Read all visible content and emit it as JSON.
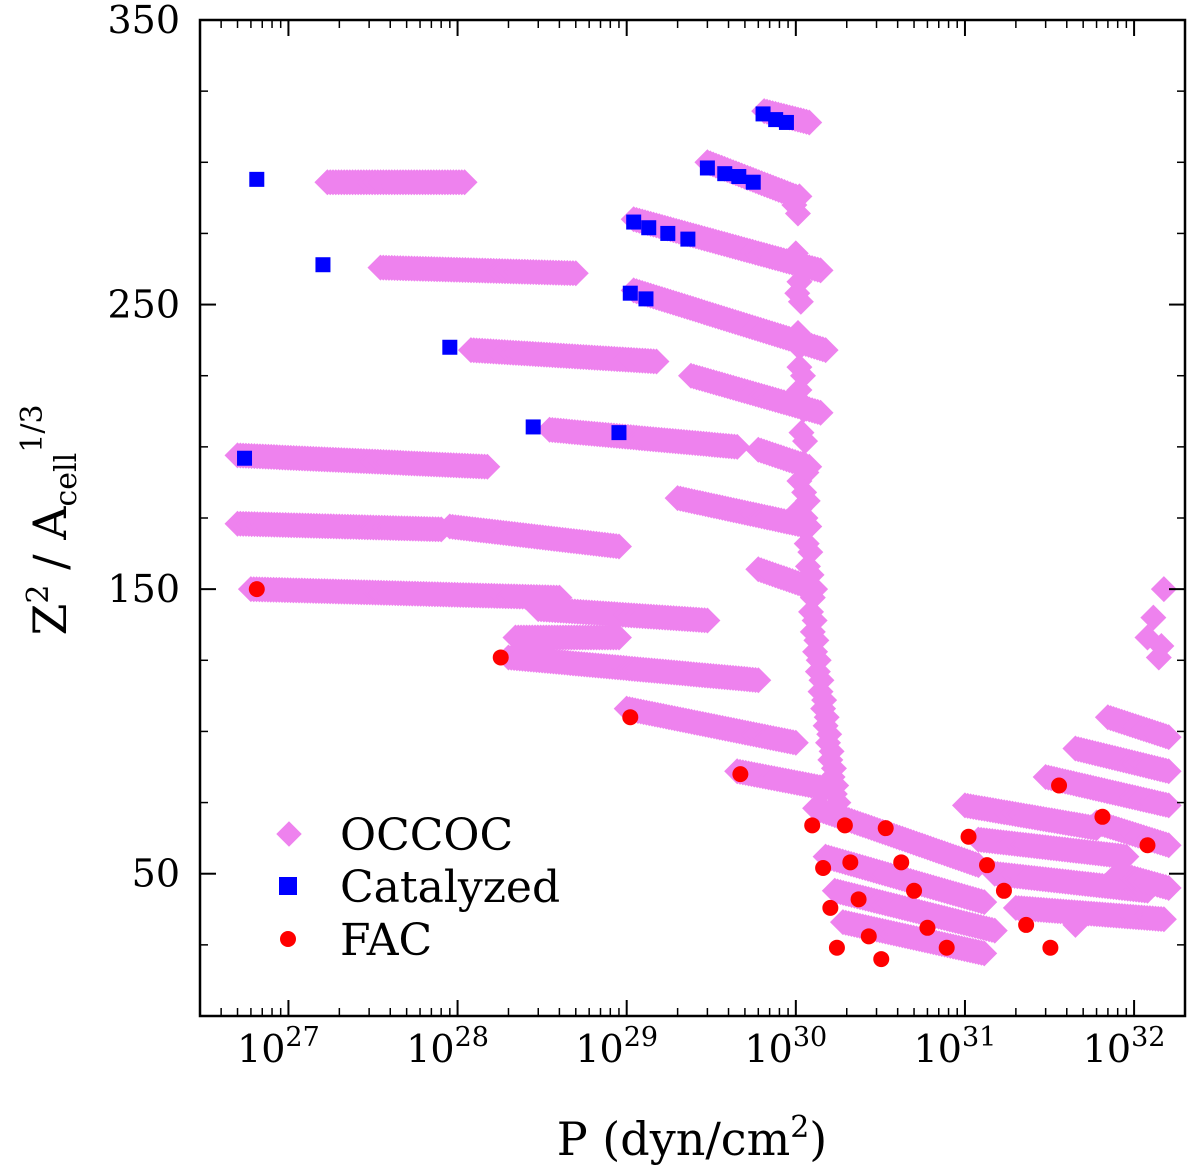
{
  "chart_data": {
    "type": "scatter",
    "xscale": "log",
    "xlim": [
      3e+26,
      2e+32
    ],
    "ylim": [
      0,
      350
    ],
    "xlabel": {
      "main": "P (dyn/cm",
      "sup": "2",
      "end": ")"
    },
    "ylabel": {
      "z": "Z",
      "zsup": "2",
      "mid": " / A",
      "sub": "cell",
      "sup": "1/3"
    },
    "yticks": [
      "50",
      "150",
      "250",
      "350"
    ],
    "xticks": [
      {
        "base": "10",
        "exp": "27"
      },
      {
        "base": "10",
        "exp": "28"
      },
      {
        "base": "10",
        "exp": "29"
      },
      {
        "base": "10",
        "exp": "30"
      },
      {
        "base": "10",
        "exp": "31"
      },
      {
        "base": "10",
        "exp": "32"
      }
    ],
    "legend_position": "bottom-left",
    "series": [
      {
        "name": "OCCOC",
        "marker": "diamond",
        "color": "#ee82ee",
        "bands": [
          {
            "x0": 1.7e+27,
            "x1": 1.1e+28,
            "y0": 293,
            "y1": 293
          },
          {
            "x0": 3.5e+27,
            "x1": 5e+28,
            "y0": 263,
            "y1": 261
          },
          {
            "x0": 1.2e+28,
            "x1": 1.5e+29,
            "y0": 234,
            "y1": 230
          },
          {
            "x0": 3.5e+28,
            "x1": 4.5e+29,
            "y0": 206,
            "y1": 200
          },
          {
            "x0": 5e+26,
            "x1": 1.5e+28,
            "y0": 197,
            "y1": 193
          },
          {
            "x0": 5e+26,
            "x1": 8e+27,
            "y0": 173,
            "y1": 171
          },
          {
            "x0": 9e+27,
            "x1": 9e+28,
            "y0": 172,
            "y1": 165
          },
          {
            "x0": 6e+26,
            "x1": 4e+28,
            "y0": 150,
            "y1": 147
          },
          {
            "x0": 3e+28,
            "x1": 3e+29,
            "y0": 143,
            "y1": 139
          },
          {
            "x0": 2e+28,
            "x1": 6e+29,
            "y0": 126,
            "y1": 118
          },
          {
            "x0": 1e+29,
            "x1": 1e+30,
            "y0": 108,
            "y1": 96
          },
          {
            "x0": 4.5e+29,
            "x1": 1.5e+30,
            "y0": 86,
            "y1": 80
          },
          {
            "x0": 1.1e+29,
            "x1": 1.4e+30,
            "y0": 280,
            "y1": 262
          },
          {
            "x0": 1.1e+29,
            "x1": 1.5e+30,
            "y0": 255,
            "y1": 234
          },
          {
            "x0": 2.4e+29,
            "x1": 1.4e+30,
            "y0": 225,
            "y1": 212
          },
          {
            "x0": 2e+29,
            "x1": 1.2e+30,
            "y0": 182,
            "y1": 172
          },
          {
            "x0": 6e+29,
            "x1": 1.2e+30,
            "y0": 199,
            "y1": 193
          },
          {
            "x0": 6e+29,
            "x1": 1.3e+30,
            "y0": 157,
            "y1": 150
          },
          {
            "x0": 3e+29,
            "x1": 1e+30,
            "y0": 300,
            "y1": 288
          },
          {
            "x0": 6.5e+29,
            "x1": 1.2e+30,
            "y0": 318,
            "y1": 314
          },
          {
            "x0": 2.2e+28,
            "x1": 9e+28,
            "y0": 133,
            "y1": 133
          },
          {
            "x0": 1.3e+30,
            "x1": 1.2e+31,
            "y0": 73,
            "y1": 53
          },
          {
            "x0": 1.5e+30,
            "x1": 1.3e+31,
            "y0": 56,
            "y1": 40
          },
          {
            "x0": 1.7e+30,
            "x1": 1.5e+31,
            "y0": 44,
            "y1": 30
          },
          {
            "x0": 1.9e+30,
            "x1": 1.3e+31,
            "y0": 33,
            "y1": 22
          },
          {
            "x0": 1e+31,
            "x1": 6e+31,
            "y0": 74,
            "y1": 66
          },
          {
            "x0": 1.2e+31,
            "x1": 9e+31,
            "y0": 62,
            "y1": 56
          },
          {
            "x0": 1.5e+31,
            "x1": 1.2e+32,
            "y0": 50,
            "y1": 44
          },
          {
            "x0": 2e+31,
            "x1": 1.5e+32,
            "y0": 38,
            "y1": 34
          },
          {
            "x0": 3e+31,
            "x1": 1.6e+32,
            "y0": 84,
            "y1": 74
          },
          {
            "x0": 4.5e+31,
            "x1": 1.6e+32,
            "y0": 94,
            "y1": 86
          },
          {
            "x0": 7e+31,
            "x1": 1.6e+32,
            "y0": 105,
            "y1": 98
          },
          {
            "x0": 6e+31,
            "x1": 1.6e+32,
            "y0": 68,
            "y1": 60
          },
          {
            "x0": 8e+31,
            "x1": 1.6e+32,
            "y0": 50,
            "y1": 45
          }
        ],
        "singles": [
          {
            "x": 1.05e+30,
            "y": 288
          },
          {
            "x": 1.05e+30,
            "y": 258
          },
          {
            "x": 1.05e+30,
            "y": 235
          },
          {
            "x": 1.05e+30,
            "y": 220
          },
          {
            "x": 1.05e+30,
            "y": 178
          },
          {
            "x": 1.05e+30,
            "y": 188
          },
          {
            "x": 4.5e+31,
            "x2": null,
            "y": 32
          },
          {
            "x": 1.5e+32,
            "y": 150
          },
          {
            "x": 1.3e+32,
            "y": 140
          },
          {
            "x": 1.2e+32,
            "y": 133
          },
          {
            "x": 1.45e+32,
            "y": 130
          },
          {
            "x": 1.4e+32,
            "y": 126
          }
        ],
        "vertical_branch": [
          {
            "x": 9.8e+29,
            "y": 285
          },
          {
            "x": 1e+30,
            "y": 268
          },
          {
            "x": 1.02e+30,
            "y": 254
          },
          {
            "x": 1.03e+30,
            "y": 240
          },
          {
            "x": 1.05e+30,
            "y": 228
          },
          {
            "x": 1.06e+30,
            "y": 216
          },
          {
            "x": 1.08e+30,
            "y": 205
          },
          {
            "x": 1.1e+30,
            "y": 194
          },
          {
            "x": 1.12e+30,
            "y": 184
          },
          {
            "x": 1.14e+30,
            "y": 175
          },
          {
            "x": 1.16e+30,
            "y": 166
          },
          {
            "x": 1.18e+30,
            "y": 158
          },
          {
            "x": 1.2e+30,
            "y": 150
          },
          {
            "x": 1.23e+30,
            "y": 142
          },
          {
            "x": 1.26e+30,
            "y": 135
          },
          {
            "x": 1.3e+30,
            "y": 128
          },
          {
            "x": 1.35e+30,
            "y": 121
          },
          {
            "x": 1.4e+30,
            "y": 114
          },
          {
            "x": 1.45e+30,
            "y": 108
          },
          {
            "x": 1.5e+30,
            "y": 102
          },
          {
            "x": 1.55e+30,
            "y": 96
          },
          {
            "x": 1.6e+30,
            "y": 90
          },
          {
            "x": 1.65e+30,
            "y": 84
          },
          {
            "x": 1.7e+30,
            "y": 78
          }
        ]
      },
      {
        "name": "Catalyzed",
        "marker": "square",
        "color": "#0000ff",
        "points": [
          {
            "x": 6.5e+26,
            "y": 294
          },
          {
            "x": 1.6e+27,
            "y": 264
          },
          {
            "x": 9e+27,
            "y": 235
          },
          {
            "x": 2.8e+28,
            "y": 207
          },
          {
            "x": 9e+28,
            "y": 205
          },
          {
            "x": 5.5e+26,
            "y": 196
          },
          {
            "x": 1.05e+29,
            "y": 254
          },
          {
            "x": 1.3e+29,
            "y": 252
          },
          {
            "x": 1.1e+29,
            "y": 279
          },
          {
            "x": 1.35e+29,
            "y": 277
          },
          {
            "x": 1.75e+29,
            "y": 275
          },
          {
            "x": 2.3e+29,
            "y": 273
          },
          {
            "x": 3e+29,
            "y": 298
          },
          {
            "x": 3.8e+29,
            "y": 296
          },
          {
            "x": 4.6e+29,
            "y": 295
          },
          {
            "x": 5.6e+29,
            "y": 293
          },
          {
            "x": 6.4e+29,
            "y": 317
          },
          {
            "x": 7.6e+29,
            "y": 315
          },
          {
            "x": 8.8e+29,
            "y": 314
          }
        ]
      },
      {
        "name": "FAC",
        "marker": "circle",
        "color": "#ff0000",
        "points": [
          {
            "x": 6.5e+26,
            "y": 150
          },
          {
            "x": 1.8e+28,
            "y": 126
          },
          {
            "x": 1.05e+29,
            "y": 105
          },
          {
            "x": 4.7e+29,
            "y": 85
          },
          {
            "x": 1.25e+30,
            "y": 67
          },
          {
            "x": 1.45e+30,
            "y": 52
          },
          {
            "x": 1.6e+30,
            "y": 38
          },
          {
            "x": 1.75e+30,
            "y": 24
          },
          {
            "x": 1.95e+30,
            "y": 67
          },
          {
            "x": 2.1e+30,
            "y": 54
          },
          {
            "x": 2.35e+30,
            "y": 41
          },
          {
            "x": 2.7e+30,
            "y": 28
          },
          {
            "x": 3.2e+30,
            "y": 20
          },
          {
            "x": 3.4e+30,
            "y": 66
          },
          {
            "x": 4.2e+30,
            "y": 54
          },
          {
            "x": 5e+30,
            "y": 44
          },
          {
            "x": 6e+30,
            "y": 31
          },
          {
            "x": 7.8e+30,
            "y": 24
          },
          {
            "x": 1.05e+31,
            "y": 63
          },
          {
            "x": 1.35e+31,
            "y": 53
          },
          {
            "x": 1.7e+31,
            "y": 44
          },
          {
            "x": 2.3e+31,
            "y": 32
          },
          {
            "x": 3.2e+31,
            "y": 24
          },
          {
            "x": 3.6e+31,
            "y": 81
          },
          {
            "x": 6.5e+31,
            "y": 70
          },
          {
            "x": 1.2e+32,
            "y": 60
          }
        ]
      }
    ]
  }
}
